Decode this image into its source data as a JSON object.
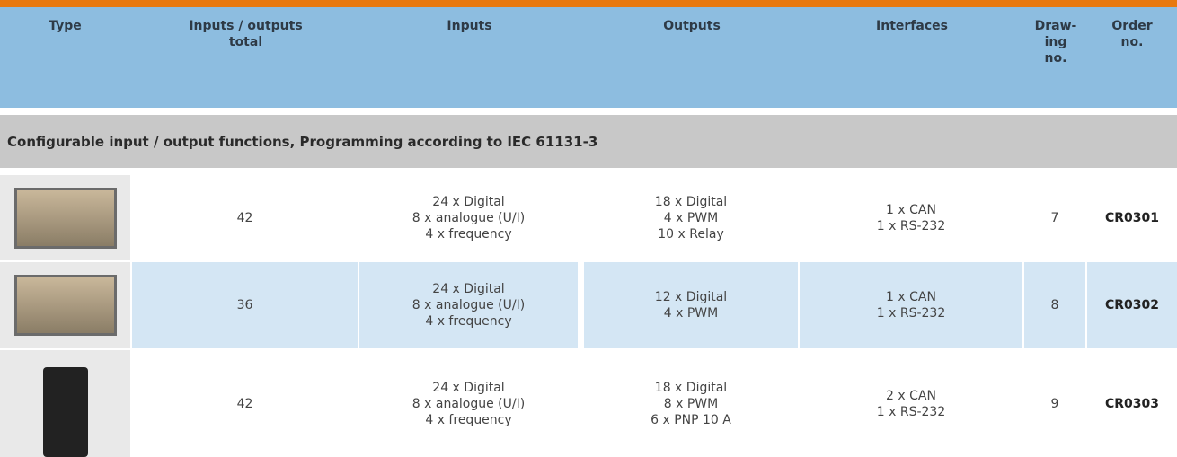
{
  "header": {
    "columns": [
      [
        "Type"
      ],
      [
        "Inputs / outputs",
        "total"
      ],
      [
        "Inputs"
      ],
      [
        "Outputs"
      ],
      [
        "Interfaces"
      ],
      [
        "Draw-",
        "ing",
        "no."
      ],
      [
        "Order",
        "no."
      ]
    ]
  },
  "section": {
    "title": "Configurable input / output functions, Programming according to IEC 61131-3"
  },
  "rows": [
    {
      "total": 42,
      "inputs": [
        "24 x Digital",
        "8 x analogue (U/I)",
        "4 x frequency"
      ],
      "outputs": [
        "18 x Digital",
        "4 x PWM",
        "10 x Relay"
      ],
      "interfaces": [
        "1 x CAN",
        "1 x RS-232"
      ],
      "drawing": 7,
      "order": "CR0301"
    },
    {
      "total": 36,
      "inputs": [
        "24 x Digital",
        "8 x analogue (U/I)",
        "4 x frequency"
      ],
      "outputs": [
        "12 x Digital",
        "4 x PWM"
      ],
      "interfaces": [
        "1 x CAN",
        "1 x RS-232"
      ],
      "drawing": 8,
      "order": "CR0302"
    },
    {
      "total": 42,
      "inputs": [
        "24 x Digital",
        "8 x analogue (U/I)",
        "4 x frequency"
      ],
      "outputs": [
        "18 x Digital",
        "8 x PWM",
        "6 x PNP 10 A"
      ],
      "interfaces": [
        "2 x CAN",
        "1 x RS-232"
      ],
      "drawing": 9,
      "order": "CR0303"
    }
  ]
}
